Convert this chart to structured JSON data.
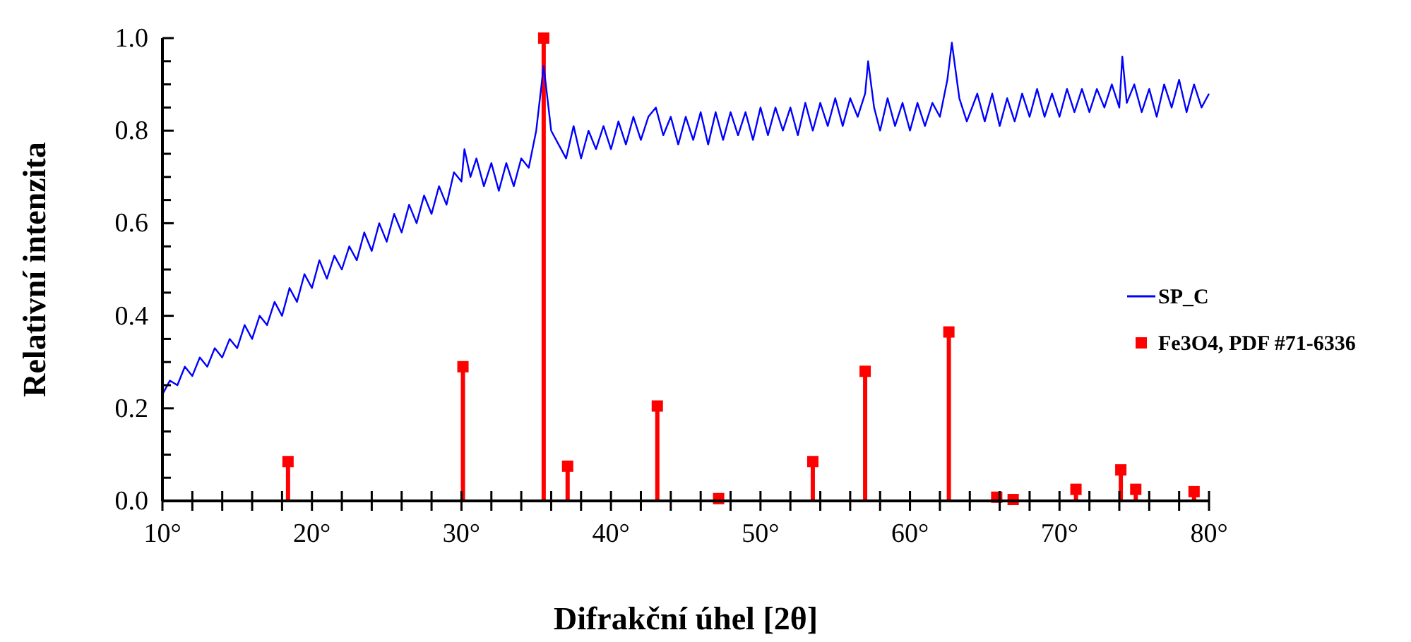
{
  "chart_data": {
    "type": "line",
    "xlabel": "Difrakční úhel [2θ]",
    "ylabel": "Relativní intenzita",
    "xlim": [
      10,
      80
    ],
    "ylim": [
      0,
      1
    ],
    "xticks": [
      {
        "value": 10,
        "label": "10°"
      },
      {
        "value": 12,
        "label": null
      },
      {
        "value": 14,
        "label": null
      },
      {
        "value": 16,
        "label": null
      },
      {
        "value": 18,
        "label": null
      },
      {
        "value": 20,
        "label": "20°"
      },
      {
        "value": 22,
        "label": null
      },
      {
        "value": 24,
        "label": null
      },
      {
        "value": 26,
        "label": null
      },
      {
        "value": 28,
        "label": null
      },
      {
        "value": 30,
        "label": "30°"
      },
      {
        "value": 32,
        "label": null
      },
      {
        "value": 34,
        "label": null
      },
      {
        "value": 36,
        "label": null
      },
      {
        "value": 38,
        "label": null
      },
      {
        "value": 40,
        "label": "40°"
      },
      {
        "value": 42,
        "label": null
      },
      {
        "value": 44,
        "label": null
      },
      {
        "value": 46,
        "label": null
      },
      {
        "value": 48,
        "label": null
      },
      {
        "value": 50,
        "label": "50°"
      },
      {
        "value": 52,
        "label": null
      },
      {
        "value": 54,
        "label": null
      },
      {
        "value": 56,
        "label": null
      },
      {
        "value": 58,
        "label": null
      },
      {
        "value": 60,
        "label": "60°"
      },
      {
        "value": 62,
        "label": null
      },
      {
        "value": 64,
        "label": null
      },
      {
        "value": 66,
        "label": null
      },
      {
        "value": 68,
        "label": null
      },
      {
        "value": 70,
        "label": "70°"
      },
      {
        "value": 72,
        "label": null
      },
      {
        "value": 74,
        "label": null
      },
      {
        "value": 76,
        "label": null
      },
      {
        "value": 78,
        "label": null
      },
      {
        "value": 80,
        "label": "80°"
      }
    ],
    "yticks": [
      {
        "value": 0,
        "label": "0.0"
      },
      {
        "value": 0.05,
        "label": null
      },
      {
        "value": 0.1,
        "label": null
      },
      {
        "value": 0.15,
        "label": null
      },
      {
        "value": 0.2,
        "label": "0.2"
      },
      {
        "value": 0.25,
        "label": null
      },
      {
        "value": 0.3,
        "label": null
      },
      {
        "value": 0.35,
        "label": null
      },
      {
        "value": 0.4,
        "label": "0.4"
      },
      {
        "value": 0.45,
        "label": null
      },
      {
        "value": 0.5,
        "label": null
      },
      {
        "value": 0.55,
        "label": null
      },
      {
        "value": 0.6,
        "label": "0.6"
      },
      {
        "value": 0.65,
        "label": null
      },
      {
        "value": 0.7,
        "label": null
      },
      {
        "value": 0.75,
        "label": null
      },
      {
        "value": 0.8,
        "label": "0.8"
      },
      {
        "value": 0.85,
        "label": null
      },
      {
        "value": 0.9,
        "label": null
      },
      {
        "value": 0.95,
        "label": null
      },
      {
        "value": 1,
        "label": "1.0"
      }
    ],
    "grid": false,
    "legend": "right",
    "series": [
      {
        "name": "SP_C",
        "color": "#0000ff",
        "marker": "none",
        "line_style": "solid",
        "x": [
          10,
          10.5,
          11,
          11.5,
          12,
          12.5,
          13,
          13.5,
          14,
          14.5,
          15,
          15.5,
          16,
          16.5,
          17,
          17.5,
          18,
          18.5,
          19,
          19.5,
          20,
          20.5,
          21,
          21.5,
          22,
          22.5,
          23,
          23.5,
          24,
          24.5,
          25,
          25.5,
          26,
          26.5,
          27,
          27.5,
          28,
          28.5,
          29,
          29.5,
          30,
          30.2,
          30.6,
          31,
          31.5,
          32,
          32.5,
          33,
          33.5,
          34,
          34.5,
          35,
          35.5,
          36,
          36.5,
          37,
          37.5,
          38,
          38.5,
          39,
          39.5,
          40,
          40.5,
          41,
          41.5,
          42,
          42.5,
          43,
          43.5,
          44,
          44.5,
          45,
          45.5,
          46,
          46.5,
          47,
          47.5,
          48,
          48.5,
          49,
          49.5,
          50,
          50.5,
          51,
          51.5,
          52,
          52.5,
          53,
          53.5,
          54,
          54.5,
          55,
          55.5,
          56,
          56.5,
          57,
          57.2,
          57.6,
          58,
          58.5,
          59,
          59.5,
          60,
          60.5,
          61,
          61.5,
          62,
          62.5,
          62.8,
          63.3,
          63.8,
          64.5,
          65,
          65.5,
          66,
          66.5,
          67,
          67.5,
          68,
          68.5,
          69,
          69.5,
          70,
          70.5,
          71,
          71.5,
          72,
          72.5,
          73,
          73.5,
          74,
          74.2,
          74.5,
          75,
          75.5,
          76,
          76.5,
          77,
          77.5,
          78,
          78.5,
          79,
          79.5,
          80
        ],
        "values": [
          0.23,
          0.26,
          0.25,
          0.29,
          0.27,
          0.31,
          0.29,
          0.33,
          0.31,
          0.35,
          0.33,
          0.38,
          0.35,
          0.4,
          0.38,
          0.43,
          0.4,
          0.46,
          0.43,
          0.49,
          0.46,
          0.52,
          0.48,
          0.53,
          0.5,
          0.55,
          0.52,
          0.58,
          0.54,
          0.6,
          0.56,
          0.62,
          0.58,
          0.64,
          0.6,
          0.66,
          0.62,
          0.68,
          0.64,
          0.71,
          0.69,
          0.76,
          0.7,
          0.74,
          0.68,
          0.73,
          0.67,
          0.73,
          0.68,
          0.74,
          0.72,
          0.8,
          0.94,
          0.8,
          0.77,
          0.74,
          0.81,
          0.74,
          0.8,
          0.76,
          0.81,
          0.76,
          0.82,
          0.77,
          0.83,
          0.78,
          0.83,
          0.85,
          0.79,
          0.83,
          0.77,
          0.83,
          0.78,
          0.84,
          0.77,
          0.84,
          0.78,
          0.84,
          0.79,
          0.84,
          0.78,
          0.85,
          0.79,
          0.85,
          0.8,
          0.85,
          0.79,
          0.86,
          0.8,
          0.86,
          0.81,
          0.87,
          0.81,
          0.87,
          0.83,
          0.88,
          0.95,
          0.85,
          0.8,
          0.87,
          0.81,
          0.86,
          0.8,
          0.86,
          0.81,
          0.86,
          0.83,
          0.91,
          0.99,
          0.87,
          0.82,
          0.88,
          0.82,
          0.88,
          0.81,
          0.87,
          0.82,
          0.88,
          0.83,
          0.89,
          0.83,
          0.88,
          0.83,
          0.89,
          0.84,
          0.89,
          0.84,
          0.89,
          0.85,
          0.9,
          0.85,
          0.96,
          0.86,
          0.9,
          0.84,
          0.89,
          0.83,
          0.9,
          0.85,
          0.91,
          0.84,
          0.9,
          0.85,
          0.88
        ]
      },
      {
        "name": "Fe3O4, PDF #71-6336",
        "type": "lollipop",
        "color": "#ff0000",
        "marker": "square",
        "x": [
          18.4,
          30.1,
          35.5,
          37.1,
          43.1,
          47.2,
          53.5,
          57.0,
          62.6,
          65.8,
          66.9,
          71.1,
          74.1,
          75.1,
          79.0
        ],
        "values": [
          0.085,
          0.29,
          1.0,
          0.075,
          0.205,
          0.005,
          0.085,
          0.28,
          0.365,
          0.008,
          0.003,
          0.025,
          0.067,
          0.025,
          0.02
        ]
      }
    ]
  }
}
